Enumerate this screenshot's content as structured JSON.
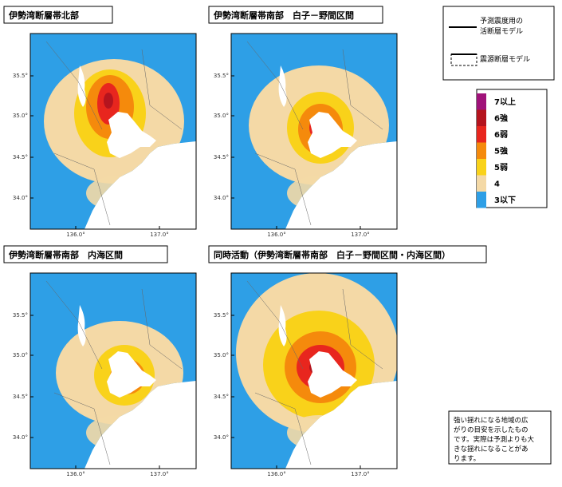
{
  "panels": [
    {
      "title": "伊勢湾断層帯北部"
    },
    {
      "title": "伊勢湾断層帯南部　白子－野間区間"
    },
    {
      "title": "伊勢湾断層帯南部　内海区間"
    },
    {
      "title": "同時活動（伊勢湾断層帯南部　白子－野間区間・内海区間）"
    }
  ],
  "axis": {
    "lat": [
      "35.5°",
      "35.0°",
      "34.5°",
      "34.0°"
    ],
    "lon": [
      "136.0°",
      "137.0°"
    ]
  },
  "legend": {
    "active_fault": [
      "予測震度用の",
      "活断層モデル"
    ],
    "source_fault": "震源断層モデル"
  },
  "scale": [
    {
      "label": "7以上",
      "color": "#a0127a"
    },
    {
      "label": "6強",
      "color": "#b5141e"
    },
    {
      "label": "6弱",
      "color": "#e8261e"
    },
    {
      "label": "5強",
      "color": "#f58a0c"
    },
    {
      "label": "5弱",
      "color": "#f9d21a"
    },
    {
      "label": "4",
      "color": "#f4d9a6"
    },
    {
      "label": "3以下",
      "color": "#2e9fe6"
    }
  ],
  "note": [
    "強い揺れになる地域の広",
    "がりの目安を示したもの",
    "です。実際は予測よりも大",
    "きな揺れになることがあ",
    "ります。"
  ]
}
